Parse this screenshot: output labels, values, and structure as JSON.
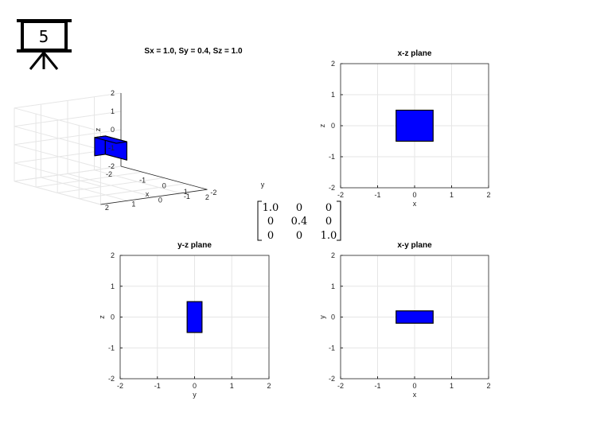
{
  "slide_number": "5",
  "colors": {
    "shape_fill": "#0000ff",
    "highlight": "#ff0000",
    "grid": "#e6e6e6",
    "axis": "#262626"
  },
  "icons": {
    "slide_badge": "presentation-board-icon"
  },
  "matrix": {
    "rows": [
      [
        "1.0",
        "0",
        "0"
      ],
      [
        "0",
        "0.4",
        "0"
      ],
      [
        "0",
        "0",
        "1.0"
      ]
    ],
    "highlight": [
      1,
      1
    ]
  },
  "chart_data": [
    {
      "type": "3d-box",
      "title": "Sx = 1.0, Sy = 0.4, Sz = 1.0",
      "xlabel": "x",
      "ylabel": "y",
      "zlabel": "z",
      "xlim": [
        -2,
        2
      ],
      "ylim": [
        -2,
        2
      ],
      "zlim": [
        -2,
        2
      ],
      "xticks": [
        -1,
        0,
        1,
        2
      ],
      "yticks": [
        -2,
        -1,
        0,
        1,
        2
      ],
      "zticks": [
        -2,
        -1,
        0,
        1,
        2
      ],
      "box": {
        "x": [
          -0.5,
          0.5
        ],
        "y": [
          -0.2,
          0.2
        ],
        "z": [
          -0.5,
          0.5
        ]
      },
      "grid": true
    },
    {
      "type": "rectangle",
      "title": "x-z plane",
      "xlabel": "x",
      "ylabel": "z",
      "xlim": [
        -2,
        2
      ],
      "ylim": [
        -2,
        2
      ],
      "xticks": [
        -2,
        -1,
        0,
        1,
        2
      ],
      "yticks": [
        -2,
        -1,
        0,
        1,
        2
      ],
      "rect": {
        "x": [
          -0.5,
          0.5
        ],
        "y": [
          -0.5,
          0.5
        ]
      },
      "grid": true
    },
    {
      "type": "rectangle",
      "title": "y-z plane",
      "xlabel": "y",
      "ylabel": "z",
      "xlim": [
        -2,
        2
      ],
      "ylim": [
        -2,
        2
      ],
      "xticks": [
        -2,
        -1,
        0,
        1,
        2
      ],
      "yticks": [
        -2,
        -1,
        0,
        1,
        2
      ],
      "rect": {
        "x": [
          -0.2,
          0.2
        ],
        "y": [
          -0.5,
          0.5
        ]
      },
      "grid": true
    },
    {
      "type": "rectangle",
      "title": "x-y plane",
      "xlabel": "x",
      "ylabel": "y",
      "xlim": [
        -2,
        2
      ],
      "ylim": [
        -2,
        2
      ],
      "xticks": [
        -2,
        -1,
        0,
        1,
        2
      ],
      "yticks": [
        -2,
        -1,
        0,
        1,
        2
      ],
      "rect": {
        "x": [
          -0.5,
          0.5
        ],
        "y": [
          -0.2,
          0.2
        ]
      },
      "grid": true
    }
  ]
}
